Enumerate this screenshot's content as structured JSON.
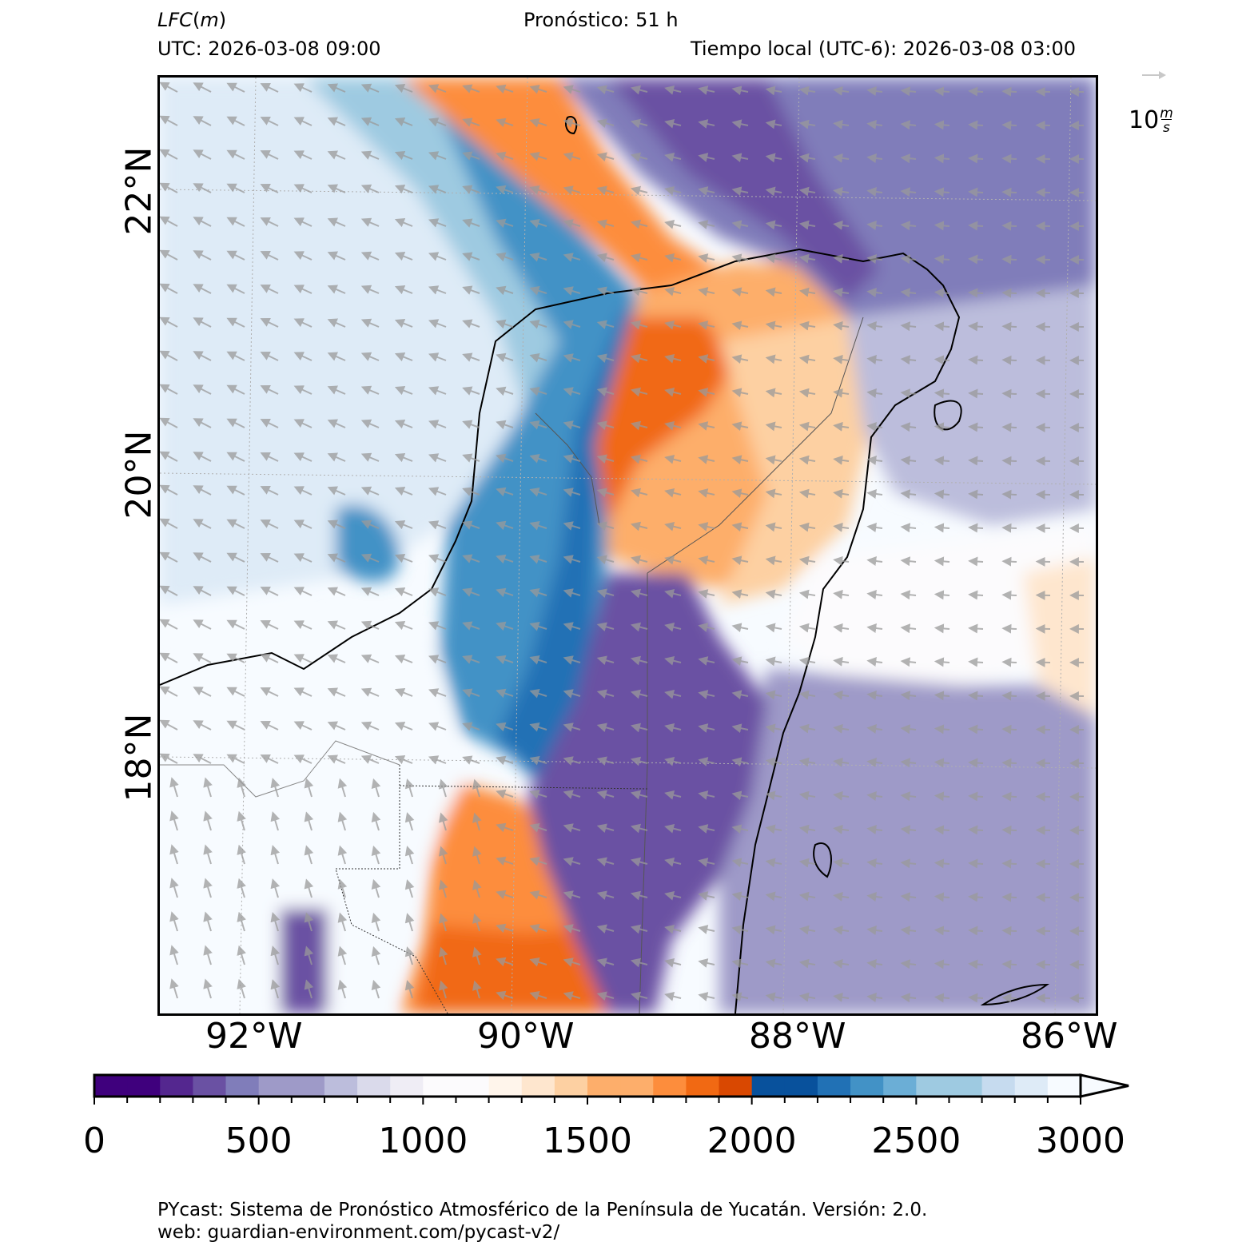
{
  "header": {
    "variable_name": "LFC",
    "variable_unit": "m",
    "forecast": "Pronóstico: 51 h",
    "utc": "UTC:  2026-03-08 09:00",
    "local_time": "Tiempo local (UTC-6): 2026-03-08 03:00"
  },
  "map": {
    "lat_labels": [
      "22°N",
      "20°N",
      "18°N"
    ],
    "lon_labels": [
      "92°W",
      "90°W",
      "88°W",
      "86°W"
    ],
    "wind_reference": {
      "value": "10",
      "unit_num": "m",
      "unit_den": "s"
    },
    "wind_direction": "from east-southeast (vectors pointing west-northwest)",
    "regions": [
      {
        "name": "low-LFC band (0–1000 m)",
        "color_range": "purple"
      },
      {
        "name": "mid-LFC band (1000–2000 m)",
        "color_range": "orange"
      },
      {
        "name": "high-LFC band (2000–3000 m)",
        "color_range": "blue"
      }
    ]
  },
  "colorbar": {
    "min": 0,
    "max": 3000,
    "step": 100,
    "extend": "max",
    "tick_labels": [
      "0",
      "500",
      "1000",
      "1500",
      "2000",
      "2500",
      "3000"
    ],
    "colors": [
      "#3f007d",
      "#54278f",
      "#6a51a3",
      "#807dba",
      "#9e9ac8",
      "#bcbddc",
      "#dadaeb",
      "#efedf5",
      "#fcfbfd",
      "#fff5eb",
      "#fee6ce",
      "#fdd0a2",
      "#fdae6b",
      "#fd8d3c",
      "#f16913",
      "#d94801",
      "#08519c",
      "#2171b5",
      "#4292c6",
      "#6baed6",
      "#9ecae1",
      "#c6dbef",
      "#deebf7",
      "#f7fbff"
    ]
  },
  "footer": {
    "line1": "PYcast: Sistema de Pronóstico Atmosférico de la Península de Yucatán. Versión: 2.0.",
    "line2": "web: guardian-environment.com/pycast-v2/"
  }
}
